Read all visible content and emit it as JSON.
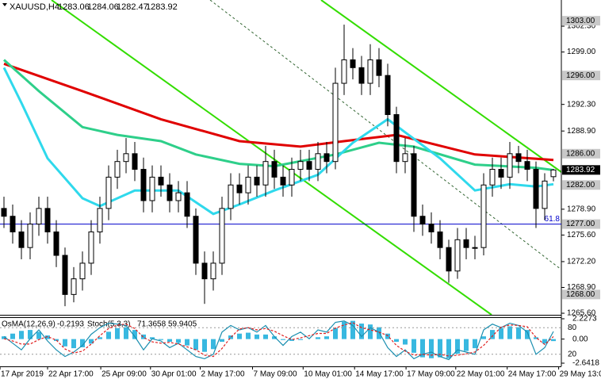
{
  "chart_data": {
    "type": "candlestick",
    "symbol": "XAUUSD,H4",
    "xlim": [
      -0.4545,
      63.909
    ],
    "ylim": [
      1265.4,
      1305.65
    ],
    "yticks": [
      {
        "value": 1302.3,
        "label": "1302.30"
      },
      {
        "value": 1299,
        "label": "1299.00"
      },
      {
        "value": 1292.3,
        "label": "1292.30"
      },
      {
        "value": 1288.9,
        "label": "1288.90"
      },
      {
        "value": 1278.9,
        "label": "1278.90"
      },
      {
        "value": 1275.6,
        "label": "1275.60"
      },
      {
        "value": 1272.2,
        "label": "1272.20"
      },
      {
        "value": 1268.9,
        "label": "1268.90"
      },
      {
        "value": 1265.6,
        "label": "1265.60"
      }
    ],
    "candles": {
      "open": [
        1279,
        1278,
        1276,
        1274,
        1277,
        1279,
        1276,
        1273,
        1268,
        1270,
        1272,
        1276,
        1279,
        1283,
        1285,
        1286,
        1284,
        1280,
        1283,
        1282,
        1280,
        1281,
        1278,
        1272,
        1270,
        1272,
        1279,
        1282,
        1281,
        1283,
        1282,
        1285,
        1283,
        1282,
        1284,
        1285,
        1284,
        1286,
        1285,
        1295,
        1298,
        1297,
        1295,
        1298,
        1296,
        1291,
        1285,
        1286,
        1278,
        1277,
        1276,
        1274,
        1271,
        1275,
        1274,
        1274,
        1282,
        1284,
        1283,
        1286,
        1285,
        1284,
        1279,
        1283.06
      ],
      "high": [
        1280.5,
        1279.5,
        1277.5,
        1278.5,
        1280.5,
        1280.5,
        1277.5,
        1274,
        1271.5,
        1273.5,
        1277.5,
        1280.5,
        1284.5,
        1286.5,
        1288,
        1287.5,
        1285.5,
        1284.5,
        1284.5,
        1283.5,
        1282.5,
        1282.5,
        1279,
        1273.5,
        1273.5,
        1280.5,
        1283.5,
        1283.5,
        1284.5,
        1284.5,
        1287,
        1286.5,
        1284.5,
        1285.5,
        1286.5,
        1286.5,
        1287.5,
        1287.5,
        1297,
        1302.5,
        1299.5,
        1298.5,
        1300,
        1299.5,
        1297.5,
        1292,
        1288,
        1287,
        1279.5,
        1278.5,
        1277.5,
        1275,
        1276.5,
        1276.5,
        1275.5,
        1283.5,
        1285.5,
        1285.5,
        1287.5,
        1287,
        1286.5,
        1285,
        1283.5,
        1284.06
      ],
      "low": [
        1276.5,
        1274.5,
        1272.5,
        1272.5,
        1275.5,
        1274.5,
        1271.5,
        1266.5,
        1267,
        1268.5,
        1270.5,
        1274.5,
        1277.5,
        1281.5,
        1283.5,
        1282.5,
        1278.5,
        1278.5,
        1280.5,
        1278.5,
        1278.5,
        1276.5,
        1270.5,
        1266.8,
        1268.5,
        1270.5,
        1277.5,
        1279.5,
        1279.5,
        1280.5,
        1280.5,
        1281.5,
        1280.5,
        1280.5,
        1282.5,
        1282.5,
        1282.5,
        1283.5,
        1284,
        1293.5,
        1295.5,
        1293.5,
        1293.5,
        1294.5,
        1289.5,
        1283.5,
        1283.5,
        1276,
        1275.5,
        1274.5,
        1272.5,
        1269.5,
        1270,
        1272.5,
        1272.5,
        1273,
        1280.5,
        1281.5,
        1281.5,
        1283.5,
        1282.5,
        1276.5,
        1277.5,
        1282.47
      ],
      "close": [
        1278,
        1276,
        1274,
        1277,
        1279,
        1276,
        1273,
        1268,
        1270,
        1272,
        1276,
        1279,
        1283,
        1285,
        1286,
        1284,
        1280,
        1283,
        1282,
        1280,
        1281,
        1278,
        1272,
        1270,
        1272,
        1279,
        1282,
        1281,
        1283,
        1282,
        1285,
        1283,
        1282,
        1284,
        1285,
        1284,
        1286,
        1285,
        1295,
        1298,
        1297,
        1295,
        1298,
        1296,
        1291,
        1285,
        1286,
        1278,
        1277,
        1276,
        1274,
        1271,
        1275,
        1274,
        1274,
        1282,
        1284,
        1283,
        1286,
        1285,
        1284,
        1279,
        1282.5,
        1283.92
      ]
    },
    "moving_averages": [
      {
        "color": "#e00000",
        "x": [
          0,
          9,
          18,
          27,
          34,
          39,
          45,
          54,
          63
        ],
        "values": [
          1297.5,
          1294,
          1290.4,
          1287.6,
          1286.9,
          1287.6,
          1288.4,
          1285.9,
          1285.2
        ]
      },
      {
        "color": "#2ecf8a",
        "x": [
          0,
          4,
          9,
          13,
          18,
          22,
          27,
          31,
          38,
          43,
          47,
          54,
          61,
          63
        ],
        "values": [
          1298,
          1294,
          1289.4,
          1288.4,
          1287.6,
          1285.9,
          1284.7,
          1284.4,
          1285.9,
          1287.4,
          1286.9,
          1284.6,
          1284.2,
          1283.9
        ]
      },
      {
        "color": "#2fd9ec",
        "x": [
          0,
          2,
          5,
          9,
          11,
          15,
          20,
          24,
          27,
          31,
          36,
          40,
          44,
          47,
          50,
          54,
          58,
          61,
          63
        ],
        "values": [
          1297,
          1292.5,
          1285.4,
          1280.3,
          1279.3,
          1281.3,
          1281.3,
          1278.3,
          1279.5,
          1281.3,
          1283.3,
          1287.4,
          1290.4,
          1287.9,
          1285.4,
          1281.3,
          1282.1,
          1281.8,
          1282.1
        ]
      }
    ],
    "fib_level": {
      "value": 1277,
      "label": "61.8",
      "color": "#0000cc"
    },
    "price_labels": [
      {
        "value": 1303,
        "label": "1303.00"
      },
      {
        "value": 1296,
        "label": "1296.00"
      },
      {
        "value": 1286,
        "label": "1286.00"
      },
      {
        "value": 1282,
        "label": "1282.00"
      },
      {
        "value": 1277,
        "label": "1277.00"
      },
      {
        "value": 1268,
        "label": "1268.00"
      }
    ],
    "current_price": {
      "value": 1283.92,
      "label": "1283.92"
    },
    "time_axis": {
      "labels": [
        "17 Apr 2019",
        "22 Apr 17:00",
        "25 Apr 09:00",
        "30 Apr 01:00",
        "2 May 17:00",
        "7 May 09:00",
        "10 May 01:00",
        "14 May 17:00",
        "17 May 09:00",
        "22 May 01:00",
        "24 May 17:00",
        "29 May 13:00"
      ],
      "x": [
        -0.45,
        5,
        11.1,
        16.8,
        22.5,
        28.5,
        34.3,
        40.2,
        46.1,
        51.8,
        57.7,
        63.6
      ]
    },
    "oscillator": {
      "osma_name": "OsMA(12,26,9)",
      "stoch_name": "Stoch(5,3,3)",
      "osma_color": "#38b8e0",
      "osma_ylim": [
        -2.6418,
        2.2273
      ],
      "osma_yticks": [
        2.2273,
        {
          "value": 0,
          "label": "0.00"
        },
        -2.6418
      ],
      "stoch_ylim": [
        0,
        100
      ],
      "stoch_yticks": [
        80,
        20
      ],
      "osma": [
        0.3,
        0.6,
        0.9,
        1.0,
        0.8,
        0.4,
        -0.2,
        -0.8,
        -1.0,
        -0.9,
        -0.5,
        0.2,
        0.8,
        1.2,
        1.3,
        1.0,
        0.5,
        0.2,
        -0.1,
        -0.3,
        -0.4,
        -0.7,
        -1.2,
        -1.4,
        -1.1,
        -0.3,
        0.4,
        0.6,
        0.7,
        0.5,
        0.5,
        0.3,
        -0.1,
        -0.2,
        -0.1,
        0.0,
        0.2,
        0.3,
        1.2,
        1.9,
        2.0,
        1.7,
        1.6,
        1.3,
        0.6,
        -0.3,
        -0.6,
        -1.5,
        -2.0,
        -2.1,
        -2.0,
        -2.1,
        -1.6,
        -1.3,
        -1.0,
        0.3,
        1.0,
        1.2,
        1.4,
        1.3,
        1.0,
        0.2,
        -0.5,
        -0.2193
      ],
      "stoch_main": {
        "color": "#1b8fb0",
        "values": [
          60,
          45,
          30,
          55,
          75,
          50,
          30,
          15,
          25,
          40,
          65,
          80,
          90,
          88,
          85,
          60,
          30,
          55,
          50,
          35,
          45,
          30,
          15,
          10,
          20,
          70,
          85,
          75,
          80,
          70,
          85,
          60,
          40,
          60,
          70,
          55,
          75,
          70,
          92,
          95,
          85,
          60,
          80,
          70,
          35,
          15,
          30,
          10,
          20,
          25,
          15,
          8,
          30,
          25,
          20,
          75,
          88,
          80,
          90,
          85,
          70,
          20,
          35,
          71.3658
        ]
      },
      "stoch_signal": {
        "color": "#e02020",
        "values": [
          55,
          50,
          43,
          43,
          53,
          60,
          52,
          32,
          23,
          27,
          43,
          62,
          78,
          86,
          88,
          78,
          58,
          48,
          45,
          47,
          43,
          37,
          30,
          18,
          15,
          33,
          58,
          77,
          80,
          75,
          78,
          72,
          62,
          53,
          57,
          62,
          67,
          67,
          79,
          86,
          91,
          80,
          75,
          70,
          62,
          40,
          27,
          18,
          20,
          18,
          20,
          16,
          18,
          21,
          25,
          40,
          61,
          81,
          86,
          85,
          82,
          58,
          42,
          59.9405
        ]
      }
    }
  }
}
